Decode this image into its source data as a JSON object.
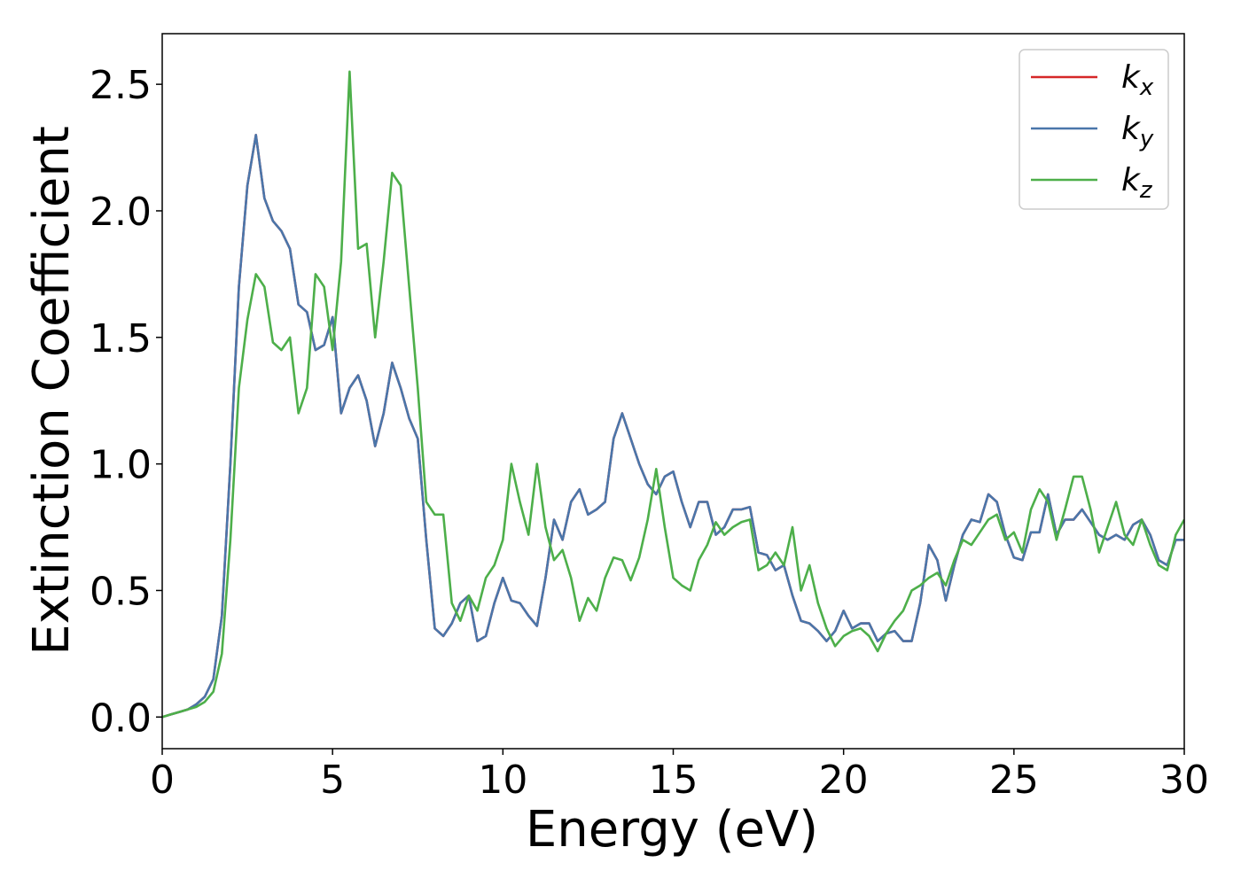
{
  "chart_data": {
    "type": "line",
    "xlabel": "Energy (eV)",
    "ylabel": "Extinction Coefficient",
    "xlim": [
      0,
      30
    ],
    "ylim": [
      -0.125,
      2.7
    ],
    "xticks": [
      0,
      5,
      10,
      15,
      20,
      25,
      30
    ],
    "yticks": [
      {
        "value": 0,
        "label": "0.0"
      },
      0.5,
      {
        "value": 1,
        "label": "1.0"
      },
      1.5,
      {
        "value": 2,
        "label": "2.0"
      },
      2.5
    ],
    "legend": "upper right",
    "x": [
      0,
      0.25,
      0.5,
      0.75,
      1,
      1.25,
      1.5,
      1.75,
      2,
      2.25,
      2.5,
      2.75,
      3,
      3.25,
      3.5,
      3.75,
      4,
      4.25,
      4.5,
      4.75,
      5,
      5.25,
      5.5,
      5.75,
      6,
      6.25,
      6.5,
      6.75,
      7,
      7.25,
      7.5,
      7.75,
      8,
      8.25,
      8.5,
      8.75,
      9,
      9.25,
      9.5,
      9.75,
      10,
      10.25,
      10.5,
      10.75,
      11,
      11.25,
      11.5,
      11.75,
      12,
      12.25,
      12.5,
      12.75,
      13,
      13.25,
      13.5,
      13.75,
      14,
      14.25,
      14.5,
      14.75,
      15,
      15.25,
      15.5,
      15.75,
      16,
      16.25,
      16.5,
      16.75,
      17,
      17.25,
      17.5,
      17.75,
      18,
      18.25,
      18.5,
      18.75,
      19,
      19.25,
      19.5,
      19.75,
      20,
      20.25,
      20.5,
      20.75,
      21,
      21.25,
      21.5,
      21.75,
      22,
      22.25,
      22.5,
      22.75,
      23,
      23.25,
      23.5,
      23.75,
      24,
      24.25,
      24.5,
      24.75,
      25,
      25.25,
      25.5,
      25.75,
      26,
      26.25,
      26.5,
      26.75,
      27,
      27.25,
      27.5,
      27.75,
      28,
      28.25,
      28.5,
      28.75,
      29,
      29.25,
      29.5,
      29.75,
      30
    ],
    "series": [
      {
        "name": "kx",
        "color": "#d62728",
        "values": [
          0,
          0.01,
          0.02,
          0.03,
          0.05,
          0.08,
          0.15,
          0.4,
          1.0,
          1.7,
          2.1,
          2.3,
          2.05,
          1.96,
          1.92,
          1.85,
          1.63,
          1.6,
          1.45,
          1.47,
          1.58,
          1.2,
          1.3,
          1.35,
          1.25,
          1.07,
          1.2,
          1.4,
          1.3,
          1.18,
          1.1,
          0.7,
          0.35,
          0.32,
          0.37,
          0.45,
          0.48,
          0.3,
          0.32,
          0.45,
          0.55,
          0.46,
          0.45,
          0.4,
          0.36,
          0.55,
          0.78,
          0.7,
          0.85,
          0.9,
          0.8,
          0.82,
          0.85,
          1.1,
          1.2,
          1.1,
          1.0,
          0.92,
          0.88,
          0.95,
          0.97,
          0.85,
          0.75,
          0.85,
          0.85,
          0.72,
          0.75,
          0.82,
          0.82,
          0.83,
          0.65,
          0.64,
          0.58,
          0.6,
          0.48,
          0.38,
          0.37,
          0.34,
          0.3,
          0.34,
          0.42,
          0.35,
          0.37,
          0.37,
          0.3,
          0.33,
          0.34,
          0.3,
          0.3,
          0.45,
          0.68,
          0.62,
          0.46,
          0.6,
          0.72,
          0.78,
          0.77,
          0.88,
          0.85,
          0.72,
          0.63,
          0.62,
          0.73,
          0.73,
          0.88,
          0.72,
          0.78,
          0.78,
          0.82,
          0.77,
          0.72,
          0.7,
          0.72,
          0.7,
          0.76,
          0.78,
          0.72,
          0.62,
          0.6,
          0.7,
          0.7
        ]
      },
      {
        "name": "ky",
        "color": "#4a76aa",
        "values": [
          0,
          0.01,
          0.02,
          0.03,
          0.05,
          0.08,
          0.15,
          0.4,
          1.0,
          1.7,
          2.1,
          2.3,
          2.05,
          1.96,
          1.92,
          1.85,
          1.63,
          1.6,
          1.45,
          1.47,
          1.58,
          1.2,
          1.3,
          1.35,
          1.25,
          1.07,
          1.2,
          1.4,
          1.3,
          1.18,
          1.1,
          0.7,
          0.35,
          0.32,
          0.37,
          0.45,
          0.48,
          0.3,
          0.32,
          0.45,
          0.55,
          0.46,
          0.45,
          0.4,
          0.36,
          0.55,
          0.78,
          0.7,
          0.85,
          0.9,
          0.8,
          0.82,
          0.85,
          1.1,
          1.2,
          1.1,
          1.0,
          0.92,
          0.88,
          0.95,
          0.97,
          0.85,
          0.75,
          0.85,
          0.85,
          0.72,
          0.75,
          0.82,
          0.82,
          0.83,
          0.65,
          0.64,
          0.58,
          0.6,
          0.48,
          0.38,
          0.37,
          0.34,
          0.3,
          0.34,
          0.42,
          0.35,
          0.37,
          0.37,
          0.3,
          0.33,
          0.34,
          0.3,
          0.3,
          0.45,
          0.68,
          0.62,
          0.46,
          0.6,
          0.72,
          0.78,
          0.77,
          0.88,
          0.85,
          0.72,
          0.63,
          0.62,
          0.73,
          0.73,
          0.88,
          0.72,
          0.78,
          0.78,
          0.82,
          0.77,
          0.72,
          0.7,
          0.72,
          0.7,
          0.76,
          0.78,
          0.72,
          0.62,
          0.6,
          0.7,
          0.7
        ]
      },
      {
        "name": "kz",
        "color": "#4daf4a",
        "values": [
          0,
          0.01,
          0.02,
          0.03,
          0.04,
          0.06,
          0.1,
          0.25,
          0.7,
          1.3,
          1.57,
          1.75,
          1.7,
          1.48,
          1.45,
          1.5,
          1.2,
          1.3,
          1.75,
          1.7,
          1.45,
          1.8,
          2.55,
          1.85,
          1.87,
          1.5,
          1.8,
          2.15,
          2.1,
          1.7,
          1.3,
          0.85,
          0.8,
          0.8,
          0.45,
          0.38,
          0.48,
          0.42,
          0.55,
          0.6,
          0.7,
          1.0,
          0.85,
          0.72,
          1.0,
          0.75,
          0.62,
          0.66,
          0.55,
          0.38,
          0.47,
          0.42,
          0.55,
          0.63,
          0.62,
          0.54,
          0.63,
          0.78,
          0.98,
          0.75,
          0.55,
          0.52,
          0.5,
          0.62,
          0.68,
          0.77,
          0.72,
          0.75,
          0.77,
          0.78,
          0.58,
          0.6,
          0.65,
          0.6,
          0.75,
          0.5,
          0.6,
          0.45,
          0.35,
          0.28,
          0.32,
          0.34,
          0.35,
          0.32,
          0.26,
          0.33,
          0.38,
          0.42,
          0.5,
          0.52,
          0.55,
          0.57,
          0.52,
          0.62,
          0.7,
          0.68,
          0.73,
          0.78,
          0.8,
          0.7,
          0.73,
          0.65,
          0.82,
          0.9,
          0.85,
          0.7,
          0.82,
          0.95,
          0.95,
          0.82,
          0.65,
          0.75,
          0.85,
          0.72,
          0.68,
          0.78,
          0.68,
          0.6,
          0.58,
          0.72,
          0.78
        ]
      }
    ]
  }
}
